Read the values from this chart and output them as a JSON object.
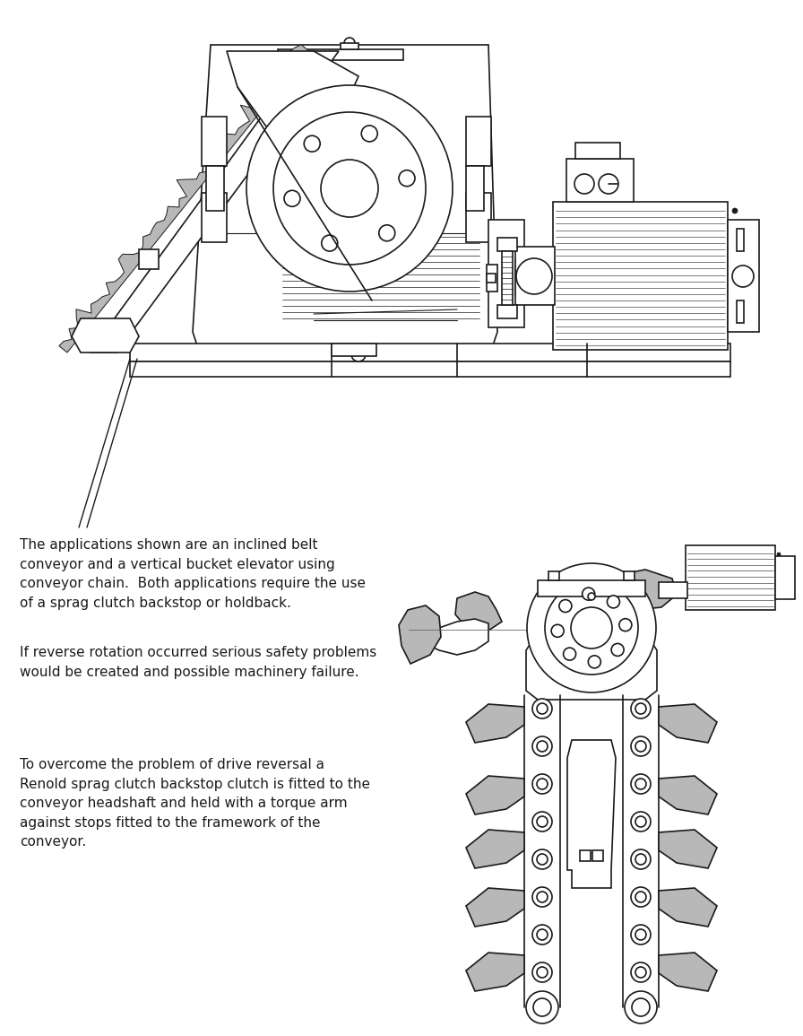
{
  "background_color": "#ffffff",
  "text1": "The applications shown are an inclined belt\nconveyor and a vertical bucket elevator using\nconveyor chain.  Both applications require the use\nof a sprag clutch backstop or holdback.",
  "text2": "If reverse rotation occurred serious safety problems\nwould be created and possible machinery failure.",
  "text3": "To overcome the problem of drive reversal a\nRenold sprag clutch backstop clutch is fitted to the\nconveyor headshaft and held with a torque arm\nagainst stops fitted to the framework of the\nconveyor.",
  "text_fontsize": 11.0,
  "text_color": "#1a1a1a",
  "line_color": "#1a1a1a",
  "gray_fill": "#b8b8b8",
  "line_width": 1.2,
  "fig_w": 8.96,
  "fig_h": 11.55,
  "dpi": 100
}
